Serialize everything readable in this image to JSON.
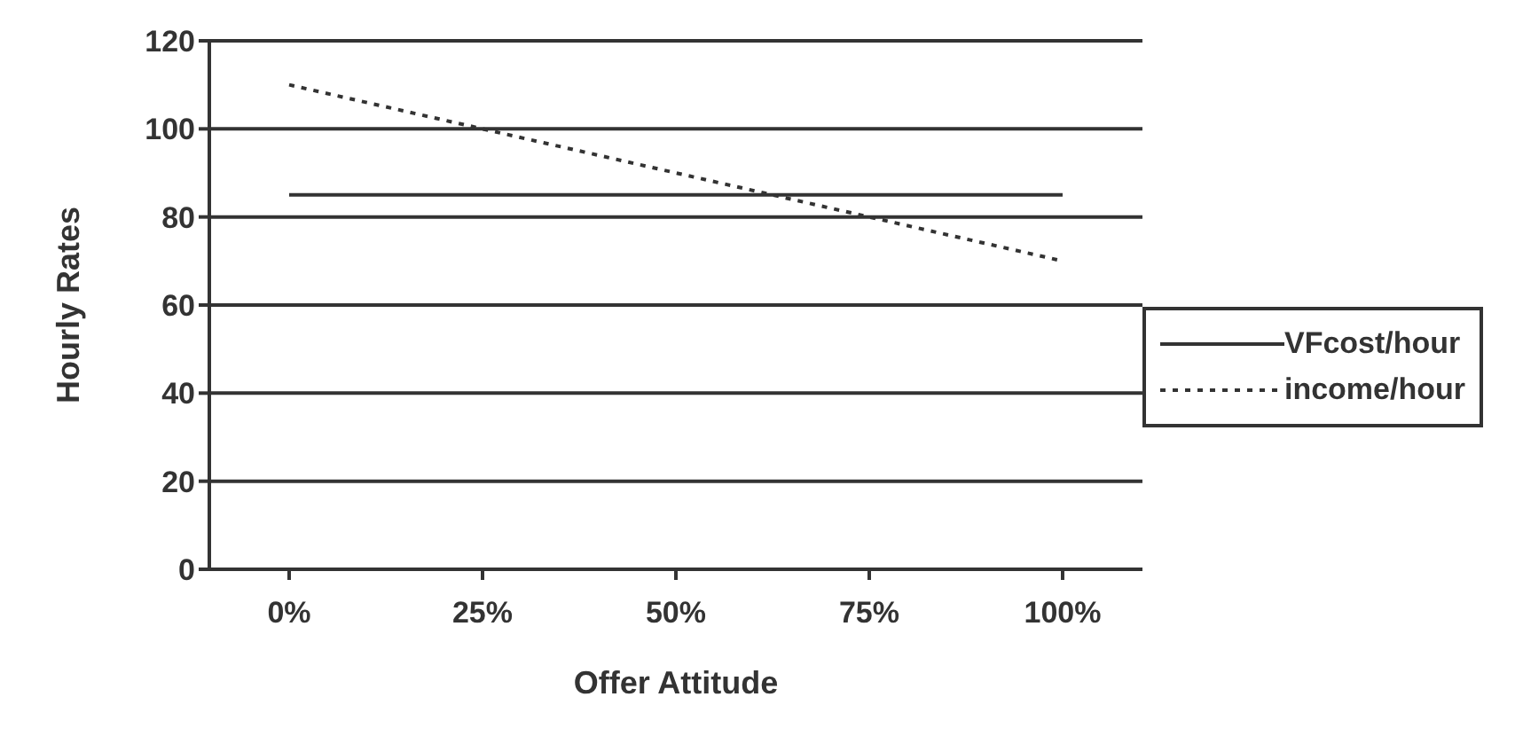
{
  "chart_data": {
    "type": "line",
    "xlabel": "Offer Attitude",
    "ylabel": "Hourly Rates",
    "categories": [
      "0%",
      "25%",
      "50%",
      "75%",
      "100%"
    ],
    "series": [
      {
        "name": "VFcost/hour",
        "color": "#333333",
        "values": [
          85,
          85,
          85,
          85,
          85
        ],
        "line_style": "solid"
      },
      {
        "name": "income/hour",
        "color": "#333333",
        "values": [
          110,
          100,
          90,
          80,
          70
        ],
        "line_style": "dotted"
      }
    ],
    "ylim": [
      0,
      120
    ],
    "yticks": [
      0,
      20,
      40,
      60,
      80,
      100,
      120
    ],
    "grid": "y",
    "legend": "right",
    "marker": "none"
  }
}
